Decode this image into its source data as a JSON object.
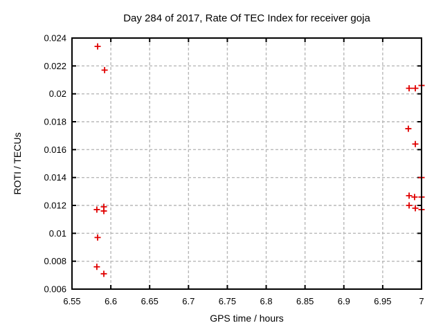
{
  "window": {
    "background_color": "#ffffff",
    "text_color": "#000000"
  },
  "chart_data": {
    "type": "scatter",
    "title": "Day 284 of 2017, Rate Of TEC Index for receiver goja",
    "xlabel": "GPS time / hours",
    "ylabel": "ROTI / TECUs",
    "xlim": [
      6.55,
      7.0
    ],
    "ylim": [
      0.006,
      0.024
    ],
    "xticks": [
      6.55,
      6.6,
      6.65,
      6.7,
      6.75,
      6.8,
      6.85,
      6.9,
      6.95,
      7
    ],
    "xtick_labels": [
      "6.55",
      "6.6",
      "6.65",
      "6.7",
      "6.75",
      "6.8",
      "6.85",
      "6.9",
      "6.95",
      "7"
    ],
    "yticks": [
      0.006,
      0.008,
      0.01,
      0.012,
      0.014,
      0.016,
      0.018,
      0.02,
      0.022,
      0.024
    ],
    "ytick_labels": [
      "0.006",
      "0.008",
      "0.01",
      "0.012",
      "0.014",
      "0.016",
      "0.018",
      "0.02",
      "0.022",
      "0.024"
    ],
    "grid": true,
    "legend": "none",
    "marker": "plus",
    "colors": {
      "marker": "#e00000",
      "grid": "#b8b8b8",
      "border": "#000000",
      "background": "#ffffff"
    },
    "series": [
      {
        "name": "ROTI",
        "color": "#e00000",
        "points": [
          [
            6.583,
            0.0234
          ],
          [
            6.592,
            0.0217
          ],
          [
            6.582,
            0.0117
          ],
          [
            6.591,
            0.0119
          ],
          [
            6.591,
            0.0116
          ],
          [
            6.583,
            0.0097
          ],
          [
            6.582,
            0.0076
          ],
          [
            6.591,
            0.0071
          ],
          [
            6.984,
            0.0204
          ],
          [
            6.992,
            0.0204
          ],
          [
            7.0,
            0.0206
          ],
          [
            6.983,
            0.0175
          ],
          [
            6.992,
            0.0164
          ],
          [
            7.0,
            0.014
          ],
          [
            6.984,
            0.0127
          ],
          [
            6.991,
            0.0126
          ],
          [
            7.0,
            0.0126
          ],
          [
            6.984,
            0.012
          ],
          [
            6.992,
            0.0118
          ],
          [
            7.0,
            0.0117
          ]
        ]
      }
    ]
  }
}
